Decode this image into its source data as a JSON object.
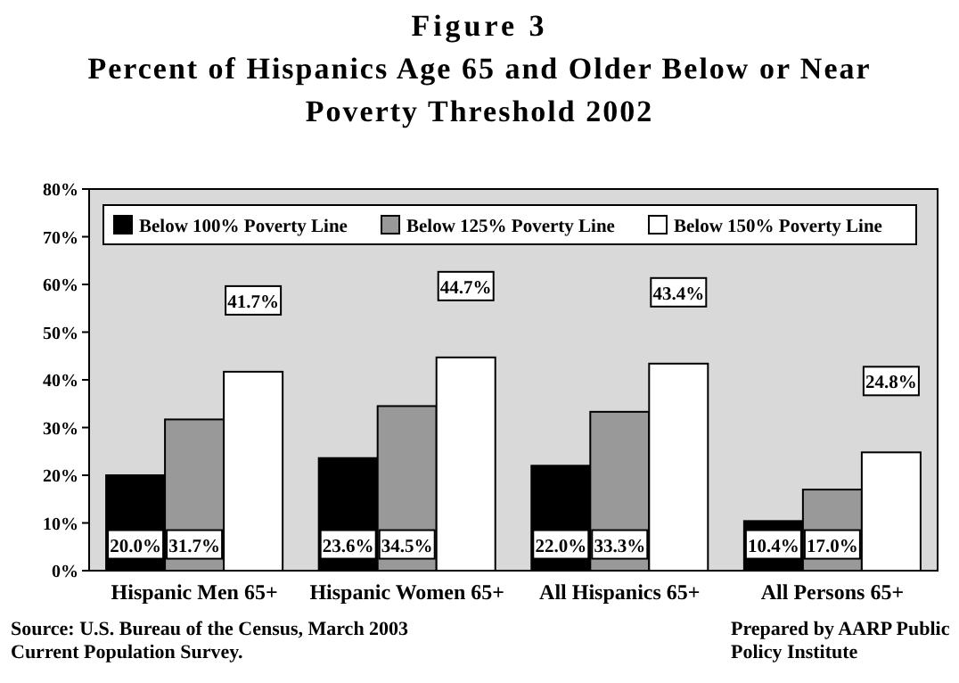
{
  "chart_data": {
    "type": "bar",
    "title": "Figure 3",
    "subtitle": "Percent of Hispanics Age 65 and Older Below or Near Poverty Threshold 2002",
    "categories": [
      "Hispanic Men 65+",
      "Hispanic Women 65+",
      "All Hispanics 65+",
      "All Persons 65+"
    ],
    "series": [
      {
        "name": "Below 100% Poverty Line",
        "color": "#000000",
        "values": [
          20.0,
          23.6,
          22.0,
          10.4
        ],
        "value_labels": [
          "20.0%",
          "23.6%",
          "22.0%",
          "10.4%"
        ]
      },
      {
        "name": "Below 125% Poverty Line",
        "color": "#999999",
        "values": [
          31.7,
          34.5,
          33.3,
          17.0
        ],
        "value_labels": [
          "31.7%",
          "34.5%",
          "33.3%",
          "17.0%"
        ]
      },
      {
        "name": "Below 150% Poverty Line",
        "color": "#ffffff",
        "values": [
          41.7,
          44.7,
          43.4,
          24.8
        ],
        "value_labels": [
          "41.7%",
          "44.7%",
          "43.4%",
          "24.8%"
        ]
      }
    ],
    "ylim": [
      0,
      80
    ],
    "yticks": [
      {
        "value": 0,
        "label": "0%"
      },
      {
        "value": 10,
        "label": "10%"
      },
      {
        "value": 20,
        "label": "20%"
      },
      {
        "value": 30,
        "label": "30%"
      },
      {
        "value": 40,
        "label": "40%"
      },
      {
        "value": 50,
        "label": "50%"
      },
      {
        "value": 60,
        "label": "60%"
      },
      {
        "value": 70,
        "label": "70%"
      },
      {
        "value": 80,
        "label": "80%"
      }
    ],
    "legend": "top",
    "annotations": [
      "Source: U.S. Bureau of the Census, March 2003 Current Population Survey.",
      "Prepared by AARP Public Policy Institute"
    ]
  }
}
